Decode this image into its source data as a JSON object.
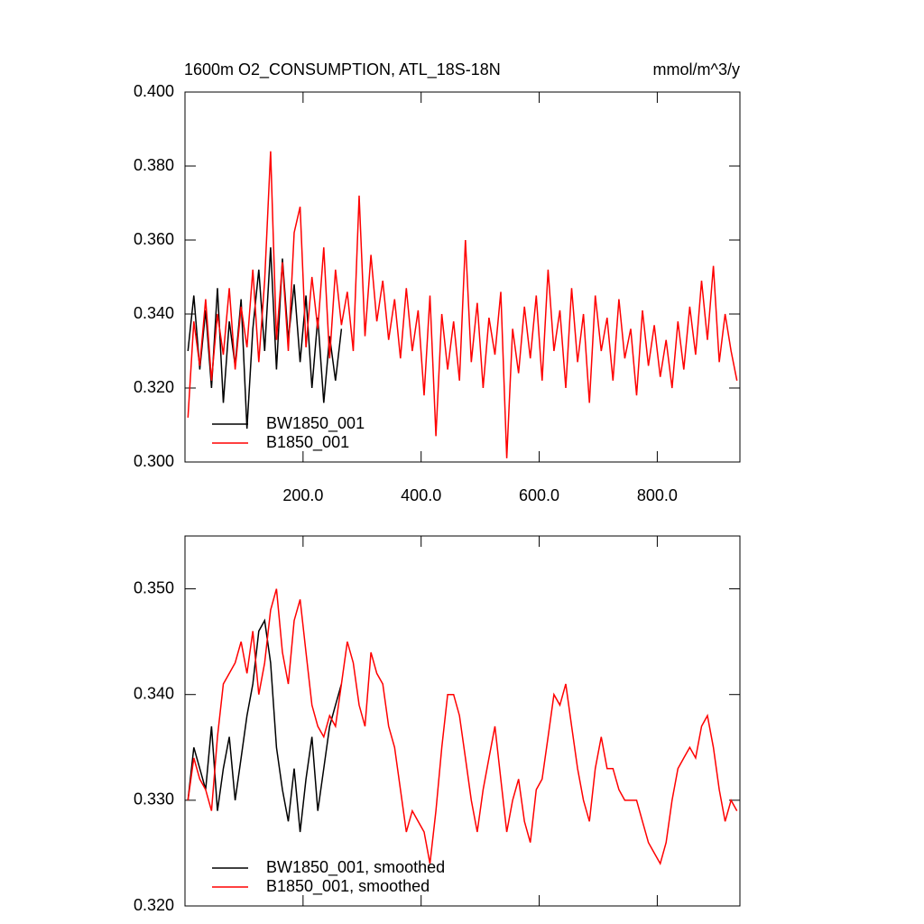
{
  "chart_data": [
    {
      "type": "line",
      "title": "1600m O2_CONSUMPTION, ATL_18S-18N",
      "units": "mmol/m^3/y",
      "xlim": [
        0,
        940
      ],
      "xticks": [
        {
          "value": 200,
          "label": "200.0"
        },
        {
          "value": 400,
          "label": "400.0"
        },
        {
          "value": 600,
          "label": "600.0"
        },
        {
          "value": 800,
          "label": "800.0"
        }
      ],
      "ylim": [
        0.3,
        0.4
      ],
      "yticks": [
        {
          "value": 0.3,
          "label": "0.300"
        },
        {
          "value": 0.32,
          "label": "0.320"
        },
        {
          "value": 0.34,
          "label": "0.340"
        },
        {
          "value": 0.36,
          "label": "0.360"
        },
        {
          "value": 0.38,
          "label": "0.380"
        },
        {
          "value": 0.4,
          "label": "0.400"
        }
      ],
      "legend": "lower left",
      "series": [
        {
          "name": "BW1850_001",
          "color": "#000000",
          "x": [
            5,
            15,
            25,
            35,
            45,
            55,
            65,
            75,
            85,
            95,
            105,
            115,
            125,
            135,
            145,
            155,
            165,
            175,
            185,
            195,
            205,
            215,
            225,
            235,
            245,
            255,
            265
          ],
          "values": [
            0.33,
            0.345,
            0.325,
            0.341,
            0.32,
            0.347,
            0.316,
            0.338,
            0.326,
            0.344,
            0.309,
            0.336,
            0.352,
            0.33,
            0.358,
            0.325,
            0.355,
            0.333,
            0.348,
            0.327,
            0.345,
            0.32,
            0.339,
            0.316,
            0.334,
            0.322,
            0.336
          ]
        },
        {
          "name": "B1850_001",
          "color": "#ff0000",
          "x": [
            5,
            15,
            25,
            35,
            45,
            55,
            65,
            75,
            85,
            95,
            105,
            115,
            125,
            135,
            145,
            155,
            165,
            175,
            185,
            195,
            205,
            215,
            225,
            235,
            245,
            255,
            265,
            275,
            285,
            295,
            305,
            315,
            325,
            335,
            345,
            355,
            365,
            375,
            385,
            395,
            405,
            415,
            425,
            435,
            445,
            455,
            465,
            475,
            485,
            495,
            505,
            515,
            525,
            535,
            545,
            555,
            565,
            575,
            585,
            595,
            605,
            615,
            625,
            635,
            645,
            655,
            665,
            675,
            685,
            695,
            705,
            715,
            725,
            735,
            745,
            755,
            765,
            775,
            785,
            795,
            805,
            815,
            825,
            835,
            845,
            855,
            865,
            875,
            885,
            895,
            905,
            915,
            925,
            935
          ],
          "values": [
            0.312,
            0.338,
            0.326,
            0.344,
            0.322,
            0.34,
            0.329,
            0.347,
            0.325,
            0.342,
            0.331,
            0.352,
            0.327,
            0.349,
            0.384,
            0.333,
            0.354,
            0.33,
            0.362,
            0.369,
            0.331,
            0.35,
            0.336,
            0.358,
            0.328,
            0.352,
            0.337,
            0.346,
            0.33,
            0.372,
            0.334,
            0.356,
            0.338,
            0.349,
            0.333,
            0.344,
            0.328,
            0.347,
            0.33,
            0.341,
            0.318,
            0.345,
            0.307,
            0.34,
            0.325,
            0.338,
            0.322,
            0.36,
            0.327,
            0.343,
            0.32,
            0.339,
            0.329,
            0.346,
            0.301,
            0.336,
            0.324,
            0.342,
            0.328,
            0.345,
            0.322,
            0.352,
            0.33,
            0.341,
            0.32,
            0.347,
            0.327,
            0.34,
            0.316,
            0.345,
            0.33,
            0.339,
            0.322,
            0.344,
            0.328,
            0.336,
            0.318,
            0.341,
            0.326,
            0.337,
            0.323,
            0.333,
            0.32,
            0.338,
            0.325,
            0.342,
            0.329,
            0.349,
            0.333,
            0.353,
            0.327,
            0.34,
            0.33,
            0.322
          ]
        }
      ]
    },
    {
      "type": "line",
      "xlim": [
        0,
        940
      ],
      "xticks": [
        200,
        400,
        600,
        800
      ],
      "ylim": [
        0.32,
        0.355
      ],
      "yticks": [
        {
          "value": 0.32,
          "label": "0.320"
        },
        {
          "value": 0.33,
          "label": "0.330"
        },
        {
          "value": 0.34,
          "label": "0.340"
        },
        {
          "value": 0.35,
          "label": "0.350"
        }
      ],
      "legend": "lower left",
      "series": [
        {
          "name": "BW1850_001, smoothed",
          "color": "#000000",
          "x": [
            5,
            15,
            25,
            35,
            45,
            55,
            65,
            75,
            85,
            95,
            105,
            115,
            125,
            135,
            145,
            155,
            165,
            175,
            185,
            195,
            205,
            215,
            225,
            235,
            245,
            255,
            265
          ],
          "values": [
            0.33,
            0.335,
            0.333,
            0.331,
            0.337,
            0.329,
            0.333,
            0.336,
            0.33,
            0.334,
            0.338,
            0.341,
            0.346,
            0.347,
            0.343,
            0.335,
            0.331,
            0.328,
            0.333,
            0.327,
            0.332,
            0.336,
            0.329,
            0.333,
            0.337,
            0.339,
            0.341
          ]
        },
        {
          "name": "B1850_001, smoothed",
          "color": "#ff0000",
          "x": [
            5,
            15,
            25,
            35,
            45,
            55,
            65,
            75,
            85,
            95,
            105,
            115,
            125,
            135,
            145,
            155,
            165,
            175,
            185,
            195,
            205,
            215,
            225,
            235,
            245,
            255,
            265,
            275,
            285,
            295,
            305,
            315,
            325,
            335,
            345,
            355,
            365,
            375,
            385,
            395,
            405,
            415,
            425,
            435,
            445,
            455,
            465,
            475,
            485,
            495,
            505,
            515,
            525,
            535,
            545,
            555,
            565,
            575,
            585,
            595,
            605,
            615,
            625,
            635,
            645,
            655,
            665,
            675,
            685,
            695,
            705,
            715,
            725,
            735,
            745,
            755,
            765,
            775,
            785,
            795,
            805,
            815,
            825,
            835,
            845,
            855,
            865,
            875,
            885,
            895,
            905,
            915,
            925,
            935
          ],
          "values": [
            0.33,
            0.334,
            0.332,
            0.331,
            0.329,
            0.336,
            0.341,
            0.342,
            0.343,
            0.345,
            0.342,
            0.346,
            0.34,
            0.343,
            0.348,
            0.35,
            0.344,
            0.341,
            0.347,
            0.349,
            0.344,
            0.339,
            0.337,
            0.336,
            0.338,
            0.337,
            0.341,
            0.345,
            0.343,
            0.339,
            0.337,
            0.344,
            0.342,
            0.341,
            0.337,
            0.335,
            0.331,
            0.327,
            0.329,
            0.328,
            0.327,
            0.324,
            0.329,
            0.335,
            0.34,
            0.34,
            0.338,
            0.334,
            0.33,
            0.327,
            0.331,
            0.334,
            0.337,
            0.332,
            0.327,
            0.33,
            0.332,
            0.328,
            0.326,
            0.331,
            0.332,
            0.336,
            0.34,
            0.339,
            0.341,
            0.337,
            0.333,
            0.33,
            0.328,
            0.333,
            0.336,
            0.333,
            0.333,
            0.331,
            0.33,
            0.33,
            0.33,
            0.328,
            0.326,
            0.325,
            0.324,
            0.326,
            0.33,
            0.333,
            0.334,
            0.335,
            0.334,
            0.337,
            0.338,
            0.335,
            0.331,
            0.328,
            0.33,
            0.329
          ]
        }
      ]
    }
  ]
}
